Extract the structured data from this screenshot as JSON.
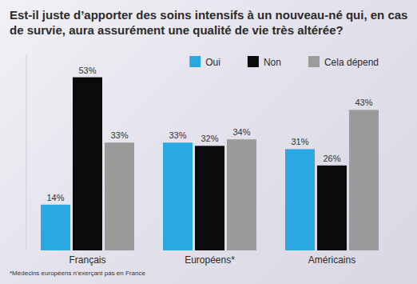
{
  "chart_data": {
    "type": "bar",
    "title": "Est-il juste d’apporter des soins intensifs à un nouveau-né qui, en cas de survie, aura assurément une qualité de vie très altérée?",
    "footnote": "*Médecins européens n’exerçant pas en France",
    "categories": [
      "Français",
      "Européens*",
      "Américains"
    ],
    "series": [
      {
        "name": "Oui",
        "color": "#29a9e1",
        "values": [
          14,
          33,
          31
        ],
        "value_labels": [
          "14%",
          "33%",
          "31%"
        ]
      },
      {
        "name": "Non",
        "color": "#0b0b0b",
        "values": [
          53,
          32,
          26
        ],
        "value_labels": [
          "53%",
          "32%",
          "26%"
        ]
      },
      {
        "name": "Cela dépend",
        "color": "#9b9b9b",
        "values": [
          33,
          34,
          43
        ],
        "value_labels": [
          "33%",
          "34%",
          "43%"
        ]
      }
    ],
    "ylim": [
      0,
      60
    ],
    "tick_labels": false,
    "data_labels": true,
    "legend": "top-right",
    "grid": false
  }
}
